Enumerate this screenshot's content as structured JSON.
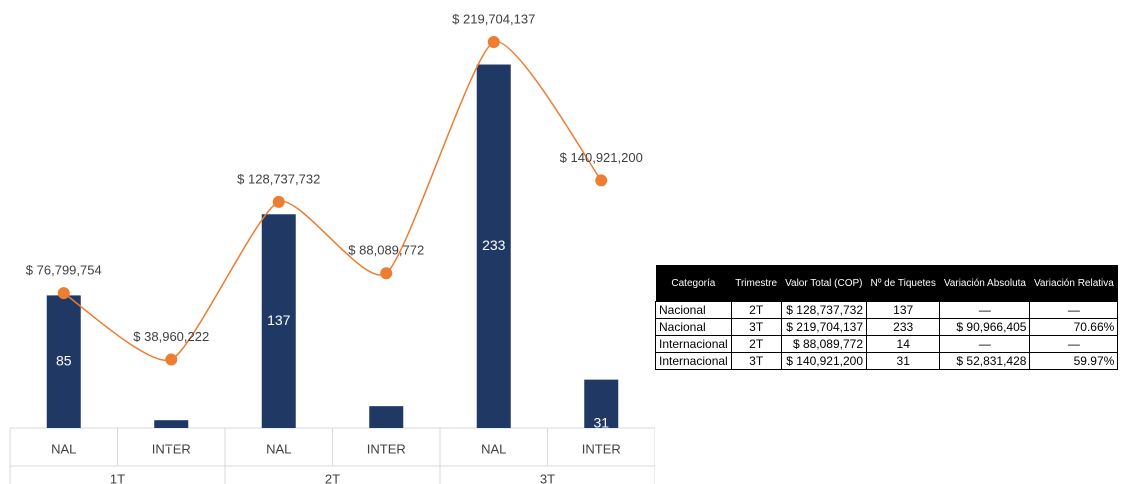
{
  "chart_data": {
    "type": "bar-line",
    "categories": [
      "NAL",
      "INTER",
      "NAL",
      "INTER",
      "NAL",
      "INTER"
    ],
    "groups": [
      "1T",
      "2T",
      "3T"
    ],
    "series": [
      {
        "color": "#203864",
        "values": [
          85,
          5,
          137,
          14,
          233,
          31
        ]
      },
      {
        "color": "#ed7d31",
        "axis": "y2",
        "values": [
          76799754,
          38960222,
          128737732,
          88089772,
          219704137,
          140921200
        ],
        "value_labels": [
          "$ 76,799,754",
          "$ 38,960,222",
          "$ 128,737,732",
          "$ 88,089,772",
          "$ 219,704,137",
          "$ 140,921,200"
        ]
      }
    ],
    "ylim": [
      0,
      250
    ],
    "y2lim": [
      0,
      222000000
    ]
  },
  "table": {
    "header": [
      "Categoría",
      "Trimestre",
      "Valor Total (COP)",
      "Nº de Tiquetes",
      "Variación Absoluta",
      "Variación Relativa"
    ],
    "rows": [
      [
        "Nacional",
        "2T",
        "$ 128,737,732",
        "137",
        "—",
        "—"
      ],
      [
        "Nacional",
        "3T",
        "$ 219,704,137",
        "233",
        "$ 90,966,405",
        "70.66%"
      ],
      [
        "Internacional",
        "2T",
        "$ 88,089,772",
        "14",
        "—",
        "—"
      ],
      [
        "Internacional",
        "3T",
        "$ 140,921,200",
        "31",
        "$ 52,831,428",
        "59.97%"
      ]
    ]
  }
}
